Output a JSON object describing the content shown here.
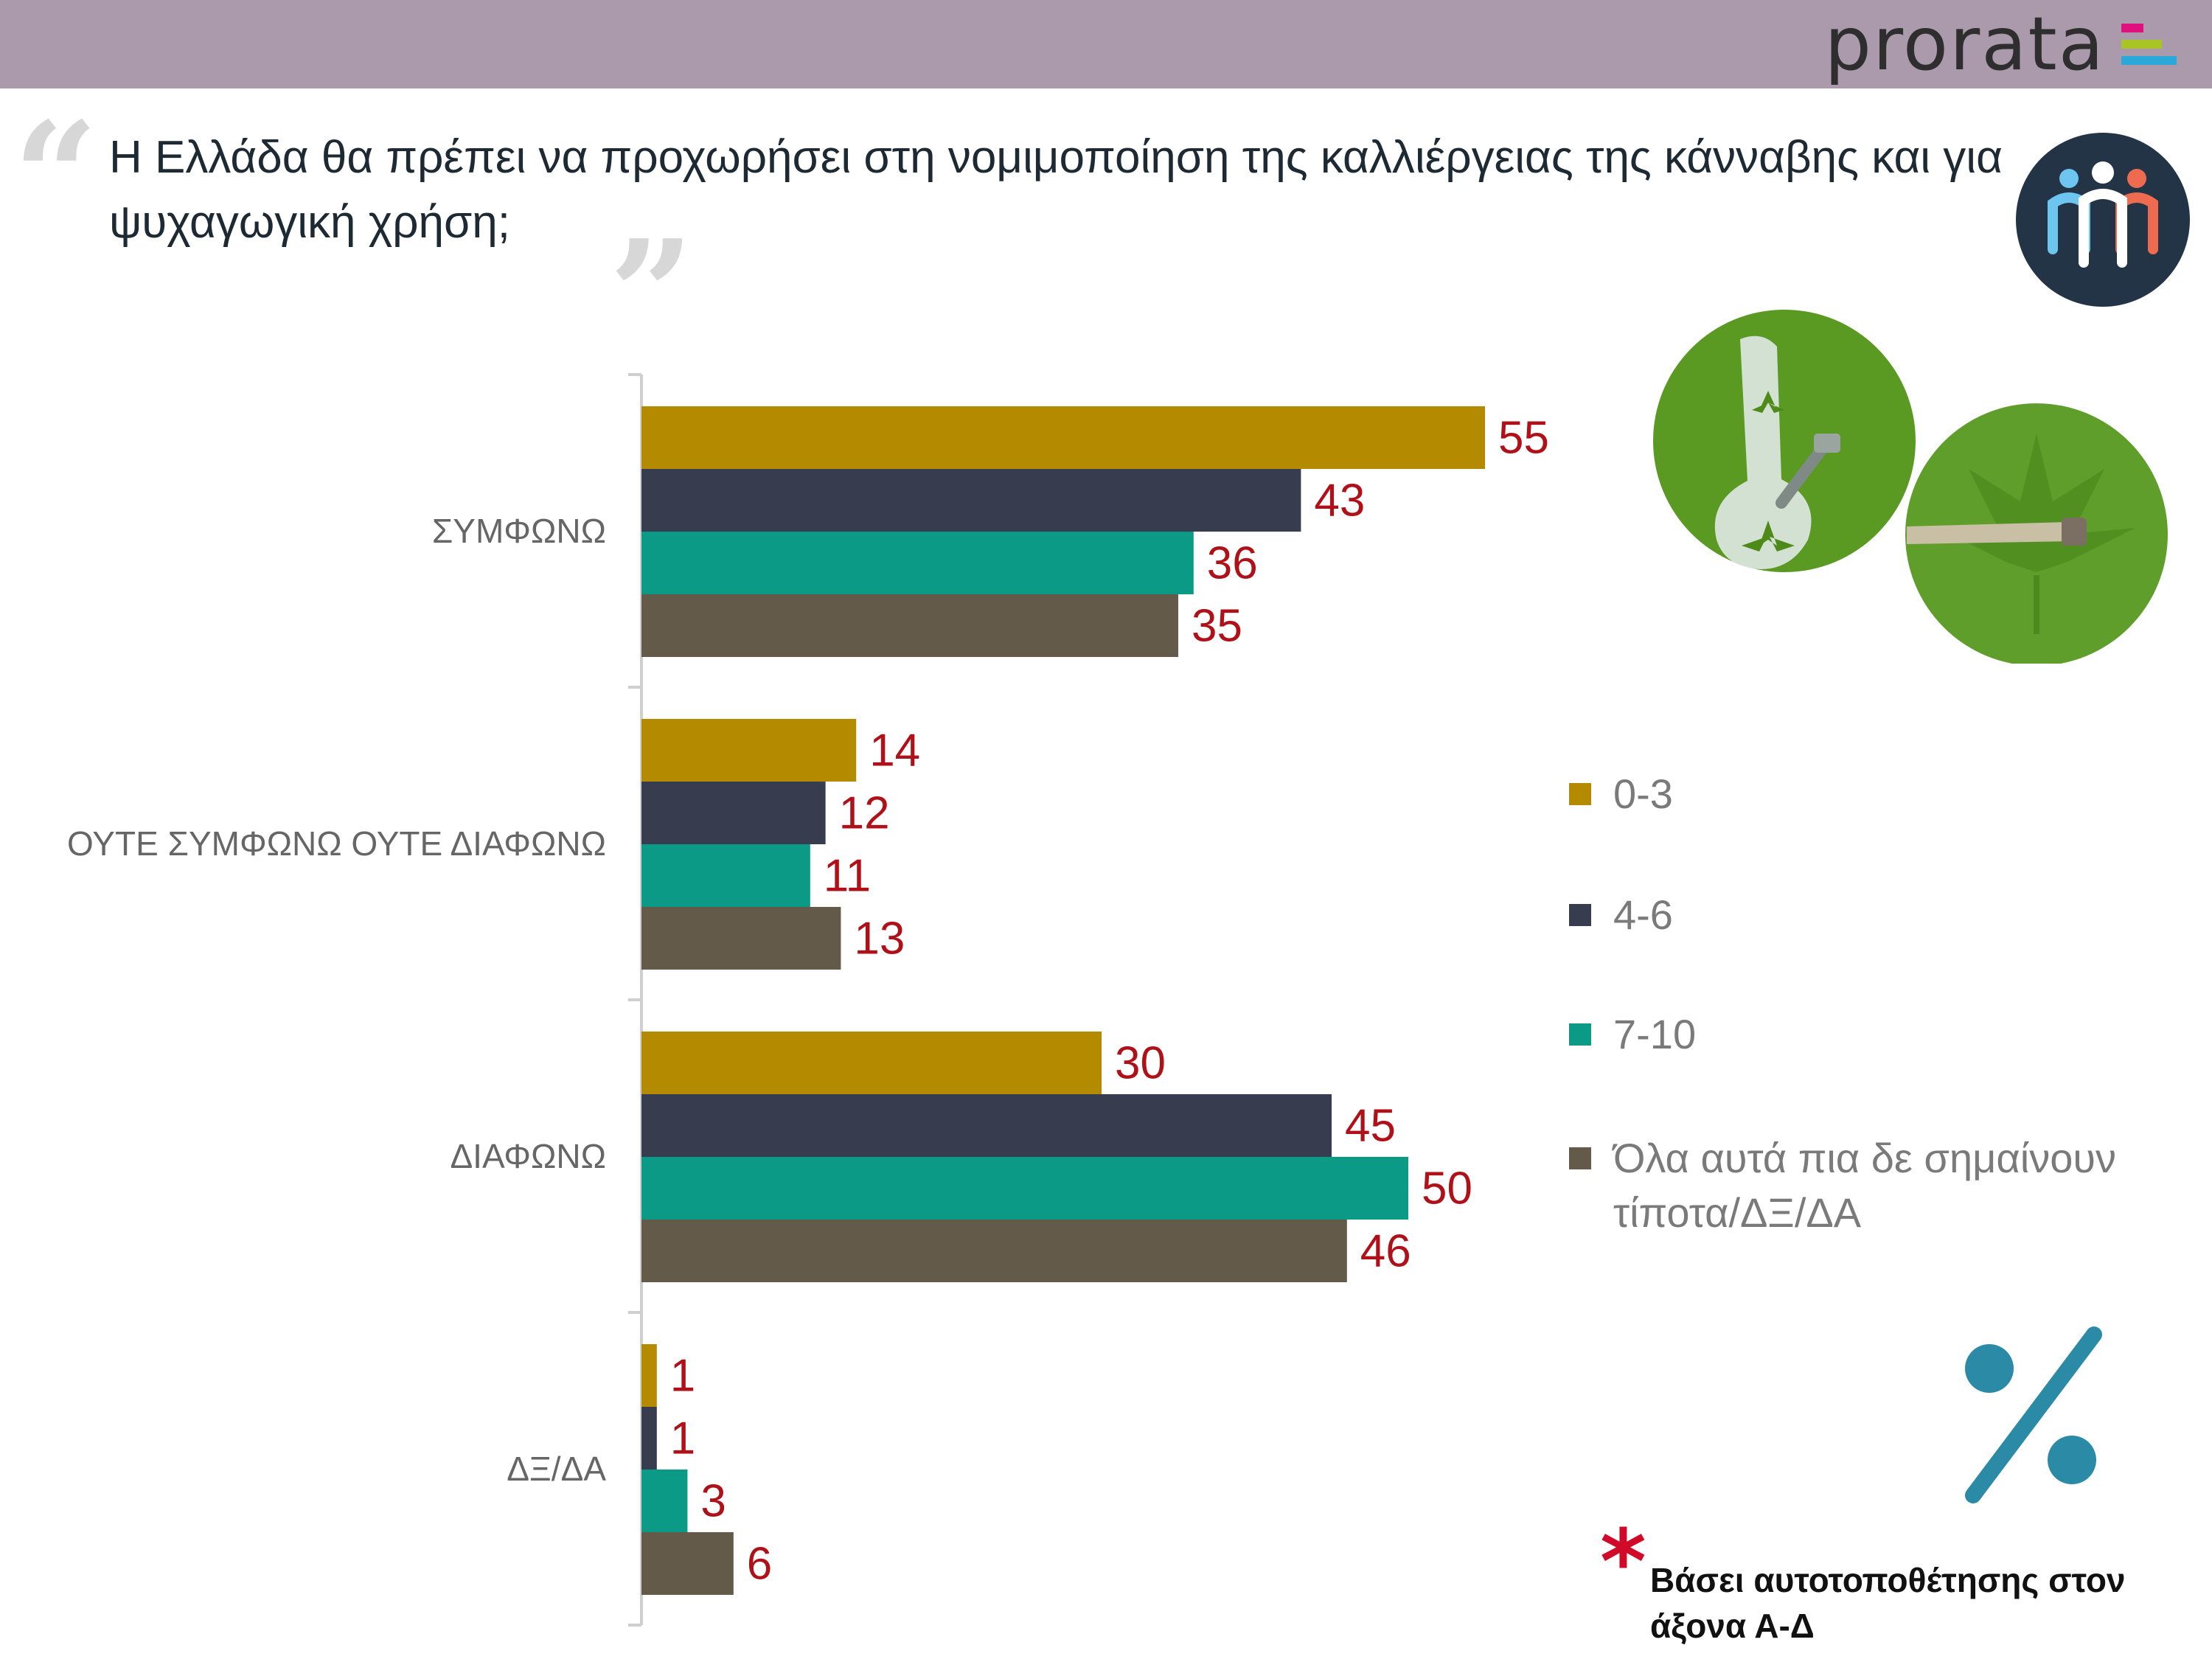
{
  "brand": {
    "logo_text": "prorata",
    "logo_bar_colors": [
      "#e0117f",
      "#a8c523",
      "#2aa9d8"
    ]
  },
  "question": "Η Ελλάδα θα πρέπει να προχωρήσει στη νομιμοποίηση της καλλιέργειας της κάνναβης και για ψυχαγωγική χρήση;",
  "icons": [
    "quote-open-icon",
    "quote-close-icon",
    "people-icon",
    "bong-icon",
    "joint-icon",
    "percent-icon"
  ],
  "chart_data": {
    "type": "bar",
    "orientation": "horizontal",
    "title": "",
    "xlabel": "",
    "ylabel": "",
    "xlim": [
      0,
      60
    ],
    "grid": false,
    "categories": [
      "ΣΥΜΦΩΝΩ",
      "ΟΥΤΕ ΣΥΜΦΩΝΩ ΟΥΤΕ ΔΙΑΦΩΝΩ",
      "ΔΙΑΦΩΝΩ",
      "ΔΞ/ΔΑ"
    ],
    "series": [
      {
        "name": "0-3",
        "color": "#b38a00",
        "values": [
          55,
          14,
          30,
          1
        ]
      },
      {
        "name": "4-6",
        "color": "#373c4e",
        "values": [
          43,
          12,
          45,
          1
        ]
      },
      {
        "name": "7-10",
        "color": "#0b9a86",
        "values": [
          36,
          11,
          50,
          3
        ]
      },
      {
        "name": "Όλα αυτά πια δε σημαίνουν τίποτα/ΔΞ/ΔΑ",
        "color": "#635a4a",
        "values": [
          35,
          13,
          46,
          6
        ]
      }
    ],
    "value_label_color": "#b01018",
    "legend_position": "right"
  },
  "footnote": {
    "marker": "*",
    "text": "Βάσει αυτοτοποθέτησης στον άξονα Α-Δ"
  }
}
